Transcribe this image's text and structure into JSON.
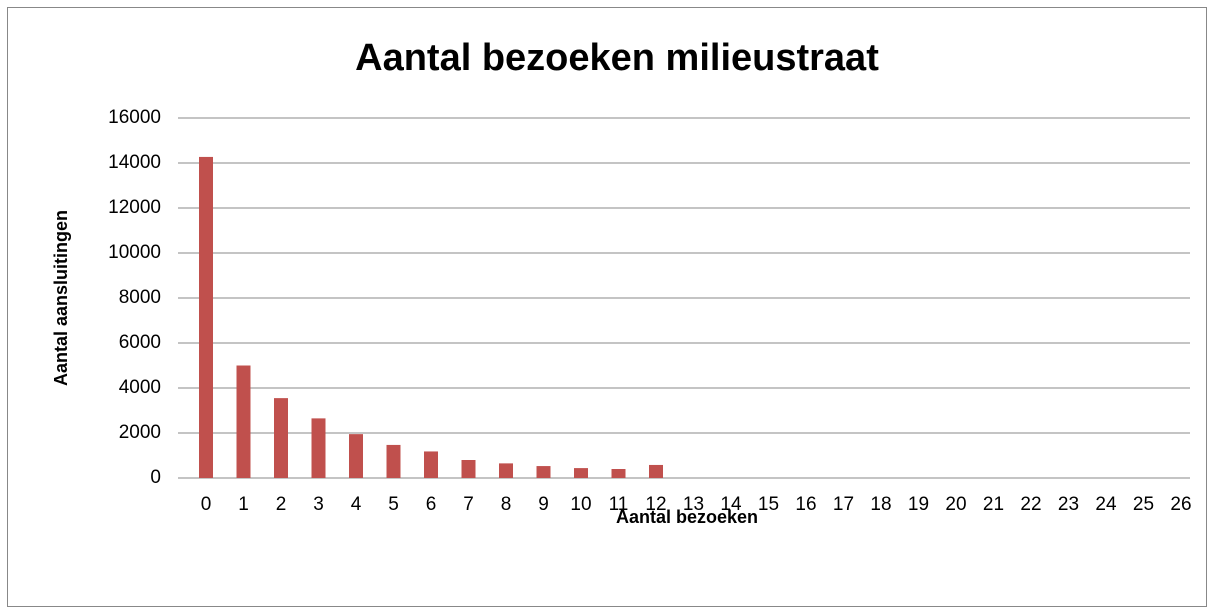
{
  "chart_data": {
    "type": "bar",
    "title": "Aantal bezoeken milieustraat",
    "x_label": "Aantal bezoeken",
    "y_label": "Aantal aansluitingen",
    "categories": [
      "0",
      "1",
      "2",
      "3",
      "4",
      "5",
      "6",
      "7",
      "8",
      "9",
      "10",
      "11",
      "12",
      "13",
      "14",
      "15",
      "16",
      "17",
      "18",
      "19",
      "20",
      "21",
      "22",
      "23",
      "24",
      "25",
      "26"
    ],
    "values": [
      14270,
      5000,
      3550,
      2650,
      1950,
      1470,
      1180,
      800,
      650,
      530,
      440,
      400,
      580,
      0,
      0,
      0,
      0,
      0,
      0,
      0,
      0,
      0,
      0,
      0,
      0,
      0,
      0
    ],
    "color": "#c0504d",
    "ylim": [
      0,
      16000
    ],
    "yticks": [
      0,
      2000,
      4000,
      6000,
      8000,
      10000,
      12000,
      14000,
      16000
    ],
    "grid": true
  }
}
